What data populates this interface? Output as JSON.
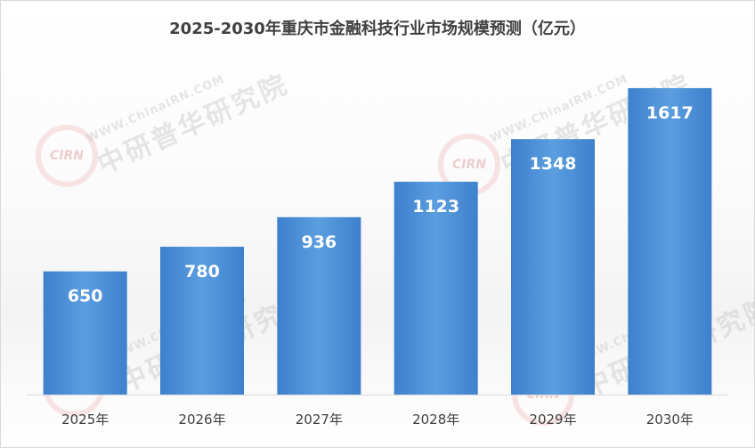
{
  "chart_data": {
    "type": "bar",
    "title": "2025-2030年重庆市金融科技行业市场规模预测（亿元）",
    "categories": [
      "2025年",
      "2026年",
      "2027年",
      "2028年",
      "2029年",
      "2030年"
    ],
    "values": [
      650,
      780,
      936,
      1123,
      1348,
      1617
    ],
    "xlabel": "",
    "ylabel": "",
    "ylim": [
      0,
      1800
    ],
    "grid": false,
    "legend": "none",
    "bar_color": "#4a8fd6",
    "label_color": "#ffffff"
  },
  "watermark": {
    "url": "WWW.ChinaIRN.COM",
    "name": "中研普华研究院",
    "logo": "CIRN"
  }
}
